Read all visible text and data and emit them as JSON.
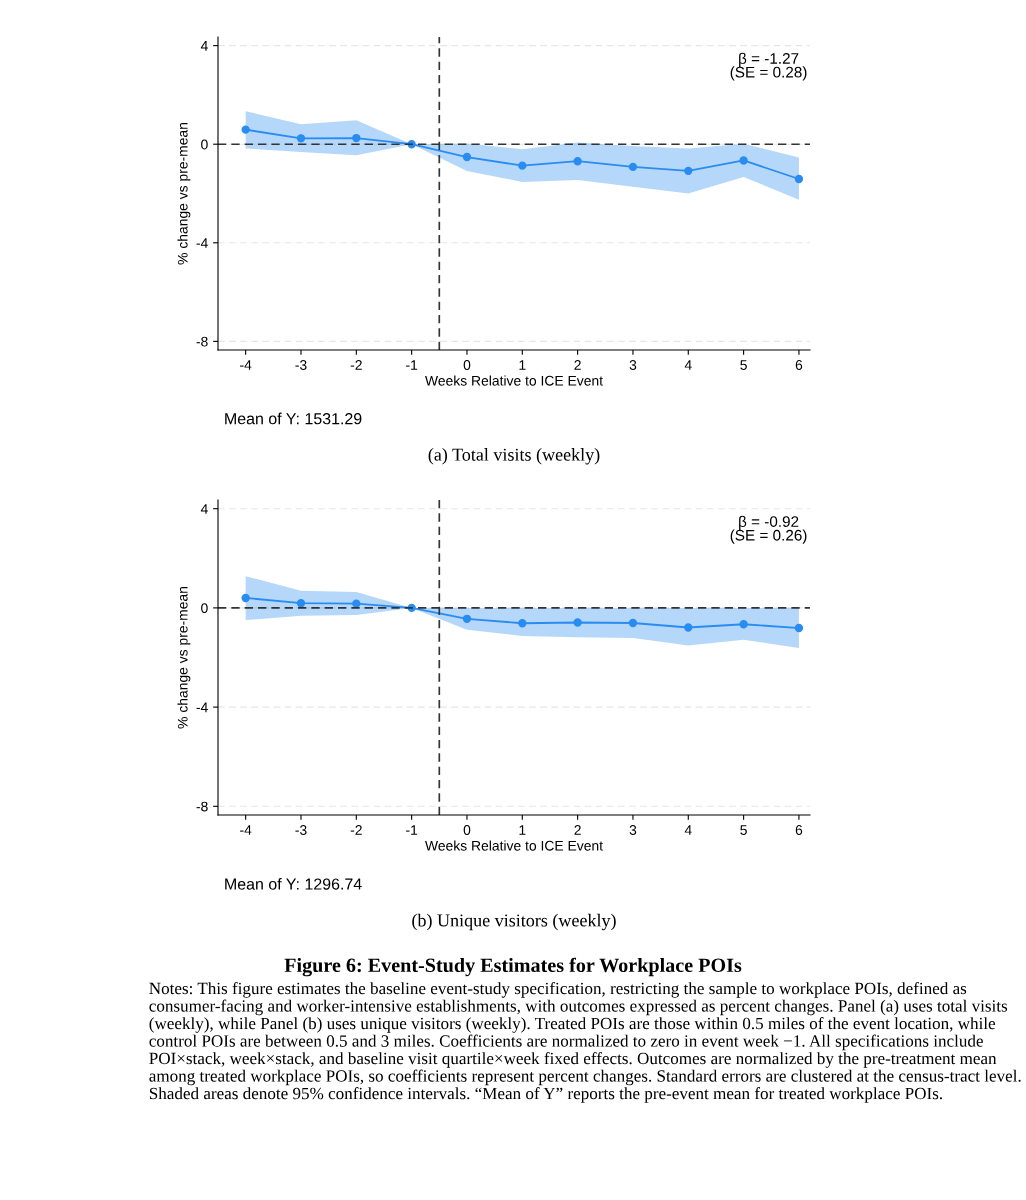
{
  "chart_data": [
    {
      "type": "line",
      "title": "(a) Total visits (weekly)",
      "xlabel": "Weeks Relative to ICE Event",
      "ylabel": "% change vs pre-mean",
      "x": [
        -4,
        -3,
        -2,
        -1,
        0,
        1,
        2,
        3,
        4,
        5,
        6
      ],
      "series": [
        {
          "color": "#2a8cf0",
          "values": [
            0.59,
            0.24,
            0.25,
            0,
            -0.52,
            -0.87,
            -0.69,
            -0.92,
            -1.08,
            -0.66,
            -1.41
          ],
          "lower": [
            -0.17,
            -0.32,
            -0.45,
            0,
            -1.09,
            -1.53,
            -1.45,
            -1.73,
            -2.0,
            -1.33,
            -2.25
          ],
          "upper": [
            1.34,
            0.81,
            0.97,
            0,
            0.03,
            -0.2,
            0.07,
            -0.07,
            -0.17,
            0.02,
            -0.54
          ]
        }
      ],
      "marker": "circle",
      "line_style": "solid",
      "grid": "y",
      "legend": false,
      "xlim": [
        -4.5,
        6.2
      ],
      "xticks": [
        -4,
        -3,
        -2,
        -1,
        0,
        1,
        2,
        3,
        4,
        5,
        6
      ],
      "ylim": [
        -8.35,
        4.35
      ],
      "yticks": [
        4,
        0,
        -4,
        -8
      ],
      "ref_lines": [
        {
          "axis": "y",
          "value": 0,
          "color": "#333333",
          "line_style": "dashed"
        },
        {
          "axis": "x",
          "value": -0.5,
          "color": "#333333",
          "line_style": "dashed"
        }
      ],
      "annotations": [
        "β = -1.27\n(SE = 0.28)",
        "Mean of Y: 1531.29"
      ]
    },
    {
      "type": "line",
      "title": "(b) Unique visitors (weekly)",
      "xlabel": "Weeks Relative to ICE Event",
      "ylabel": "% change vs pre-mean",
      "x": [
        -4,
        -3,
        -2,
        -1,
        0,
        1,
        2,
        3,
        4,
        5,
        6
      ],
      "series": [
        {
          "color": "#2a8cf0",
          "values": [
            0.4,
            0.19,
            0.17,
            0,
            -0.44,
            -0.62,
            -0.59,
            -0.61,
            -0.79,
            -0.66,
            -0.81
          ],
          "lower": [
            -0.49,
            -0.32,
            -0.29,
            0,
            -0.88,
            -1.13,
            -1.18,
            -1.21,
            -1.52,
            -1.28,
            -1.62
          ],
          "upper": [
            1.28,
            0.69,
            0.64,
            0,
            0,
            0,
            0,
            0,
            0,
            0,
            0
          ]
        }
      ],
      "marker": "circle",
      "line_style": "solid",
      "grid": "y",
      "legend": false,
      "xlim": [
        -4.5,
        6.2
      ],
      "xticks": [
        -4,
        -3,
        -2,
        -1,
        0,
        1,
        2,
        3,
        4,
        5,
        6
      ],
      "ylim": [
        -8.35,
        4.35
      ],
      "yticks": [
        4,
        0,
        -4,
        -8
      ],
      "ref_lines": [
        {
          "axis": "y",
          "value": 0,
          "color": "#333333",
          "line_style": "dashed"
        },
        {
          "axis": "x",
          "value": -0.5,
          "color": "#333333",
          "line_style": "dashed"
        }
      ],
      "annotations": [
        "β = -0.92\n(SE = 0.26)",
        "Mean of Y: 1296.74",
        "Figure 6: Event-Study Estimates for Workplace POIs",
        "Notes: This figure estimates the baseline event-study specification, restricting the sample to workplace POIs, defined as consumer-facing and worker-intensive establishments, with outcomes expressed as percent changes. Panel (a) uses total visits (weekly), while Panel (b) uses unique visitors (weekly). Treated POIs are those within 0.5 miles of the event location, while control POIs are between 0.5 and 3 miles. Coefficients are normalized to zero in event week −1. All specifications include POI×stack, week×stack, and baseline visit quartile×week fixed effects. Outcomes are normalized by the pre-treatment mean among treated workplace POIs, so coefficients represent percent changes. Standard errors are clustered at the census-tract level. Shaded areas denote 95% confidence intervals. “Mean of Y” reports the pre-event mean for treated workplace POIs."
      ]
    }
  ]
}
